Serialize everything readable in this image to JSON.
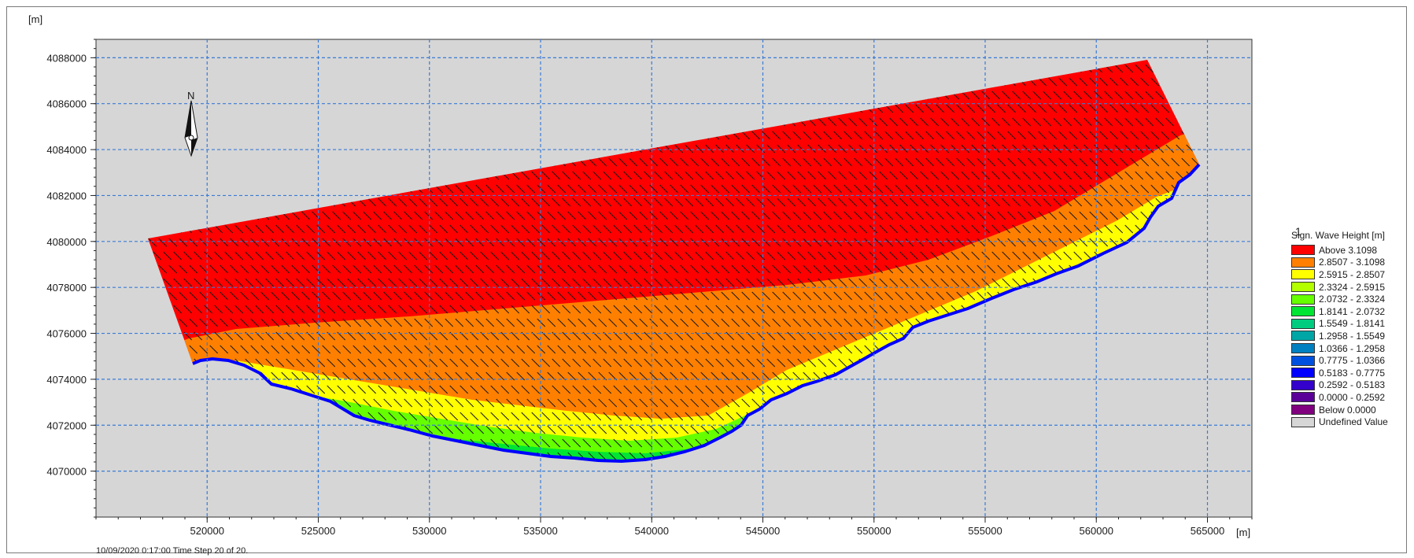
{
  "map": {
    "y_unit": "[m]",
    "x_unit": "[m]",
    "x_ticks": [
      520000,
      525000,
      530000,
      535000,
      540000,
      545000,
      550000,
      555000,
      560000,
      565000
    ],
    "y_ticks": [
      4070000,
      4072000,
      4074000,
      4076000,
      4078000,
      4080000,
      4082000,
      4084000,
      4086000,
      4088000
    ],
    "x_range": [
      515000,
      567000
    ],
    "y_range": [
      4068000,
      4088800
    ],
    "north_label": "N",
    "scale_mark": "1",
    "undefined_color": "#d6d6d6",
    "gridline_color": "#3a7bd5",
    "arrow_color": "#1a1a1a",
    "wave_direction": "north-west to south-east"
  },
  "legend": {
    "title": "Sign. Wave Height [m]",
    "items": [
      {
        "label": "Above   3.1098",
        "color": "#ff0000"
      },
      {
        "label": "2.8507 - 3.1098",
        "color": "#ff8000"
      },
      {
        "label": "2.5915 - 2.8507",
        "color": "#ffff00"
      },
      {
        "label": "2.3324 - 2.5915",
        "color": "#b3ff00"
      },
      {
        "label": "2.0732 - 2.3324",
        "color": "#66ff00"
      },
      {
        "label": "1.8141 - 2.0732",
        "color": "#00e633"
      },
      {
        "label": "1.5549 - 1.8141",
        "color": "#00cc80"
      },
      {
        "label": "1.2958 - 1.5549",
        "color": "#00a6a6"
      },
      {
        "label": "1.0366 - 1.2958",
        "color": "#0080c0"
      },
      {
        "label": "0.7775 - 1.0366",
        "color": "#0050e0"
      },
      {
        "label": "0.5183 - 0.7775",
        "color": "#0000ff"
      },
      {
        "label": "0.2592 - 0.5183",
        "color": "#3300cc"
      },
      {
        "label": "0.0000 - 0.2592",
        "color": "#5a0099"
      },
      {
        "label": "Below   0.0000",
        "color": "#800080"
      },
      {
        "label": "Undefined Value",
        "color": "#d6d6d6"
      }
    ]
  },
  "timestamp": "10/09/2020 0:17:00  Time Step 20 of 20."
}
